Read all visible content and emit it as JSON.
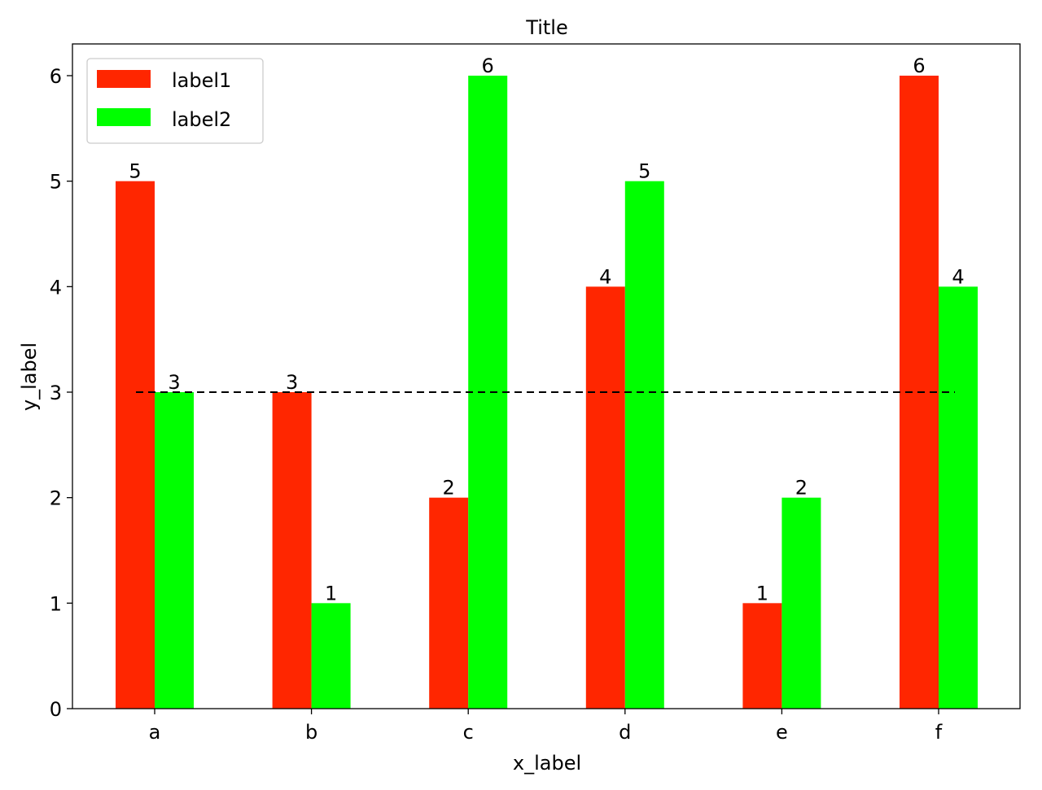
{
  "chart_data": {
    "type": "bar",
    "title": "Title",
    "xlabel": "x_label",
    "ylabel": "y_label",
    "categories": [
      "a",
      "b",
      "c",
      "d",
      "e",
      "f"
    ],
    "series": [
      {
        "name": "label1",
        "color": "#ff2600",
        "values": [
          5,
          3,
          2,
          4,
          1,
          6
        ]
      },
      {
        "name": "label2",
        "color": "#00ff00",
        "values": [
          3,
          1,
          6,
          5,
          2,
          4
        ]
      }
    ],
    "yticks": [
      0,
      1,
      2,
      3,
      4,
      5,
      6
    ],
    "ylim": [
      0,
      6.3
    ],
    "grid": false,
    "legend_position": "upper left",
    "reference_line": {
      "y": 3,
      "style": "dashed",
      "color": "#000000"
    },
    "bar_value_labels": true
  }
}
